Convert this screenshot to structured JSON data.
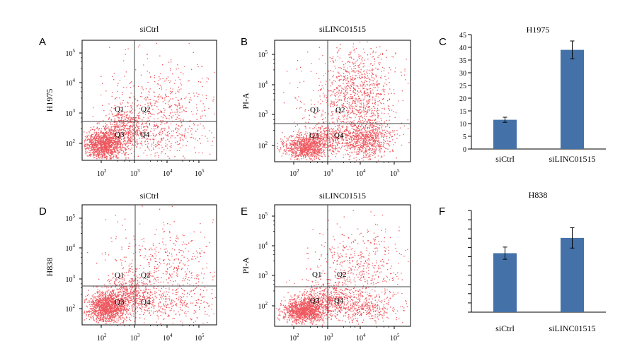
{
  "figure": {
    "panels": [
      {
        "letter": "A",
        "title": "siCtrl",
        "ylabel": "H1975",
        "quadrants": [
          "Q1",
          "Q2",
          "Q3",
          "Q4"
        ]
      },
      {
        "letter": "B",
        "title": "siLINC01515",
        "ylabel": "PI-A",
        "quadrants": [
          "Q1",
          "Q2",
          "Q3",
          "Q4"
        ]
      },
      {
        "letter": "C"
      },
      {
        "letter": "D",
        "title": "siCtrl",
        "ylabel": "H838",
        "quadrants": [
          "Q1",
          "Q2",
          "Q3",
          "Q4"
        ]
      },
      {
        "letter": "E",
        "title": "siLINC01515",
        "ylabel": "PI-A",
        "quadrants": [
          "Q1",
          "Q2",
          "Q3",
          "Q4"
        ]
      },
      {
        "letter": "F"
      }
    ]
  },
  "flow_axes": {
    "x_ticks": [
      {
        "base": "10",
        "exp": "2"
      },
      {
        "base": "10",
        "exp": "3"
      },
      {
        "base": "10",
        "exp": "4"
      },
      {
        "base": "10",
        "exp": "5"
      }
    ],
    "y_ticks": [
      {
        "base": "10",
        "exp": "2"
      },
      {
        "base": "10",
        "exp": "3"
      },
      {
        "base": "10",
        "exp": "4"
      },
      {
        "base": "10",
        "exp": "5"
      }
    ],
    "point_color": "#e8202a"
  },
  "chart_data": [
    {
      "type": "bar",
      "title": "H1975",
      "categories": [
        "siCtrl",
        "siLINC01515"
      ],
      "values": [
        11.5,
        39
      ],
      "errors": [
        1,
        3.5
      ],
      "ylim": [
        0,
        45
      ],
      "yticks": [
        "0",
        "5",
        "10",
        "15",
        "20",
        "25",
        "30",
        "35",
        "40",
        "45"
      ],
      "bar_color": "#4472a8"
    },
    {
      "type": "bar",
      "title": "H838",
      "categories": [
        "siCtrl",
        "siLINC01515"
      ],
      "values": [
        0.58,
        0.73
      ],
      "errors": [
        0.06,
        0.1
      ],
      "ylim": [
        0,
        1.0
      ],
      "bar_color": "#4472a8"
    }
  ]
}
